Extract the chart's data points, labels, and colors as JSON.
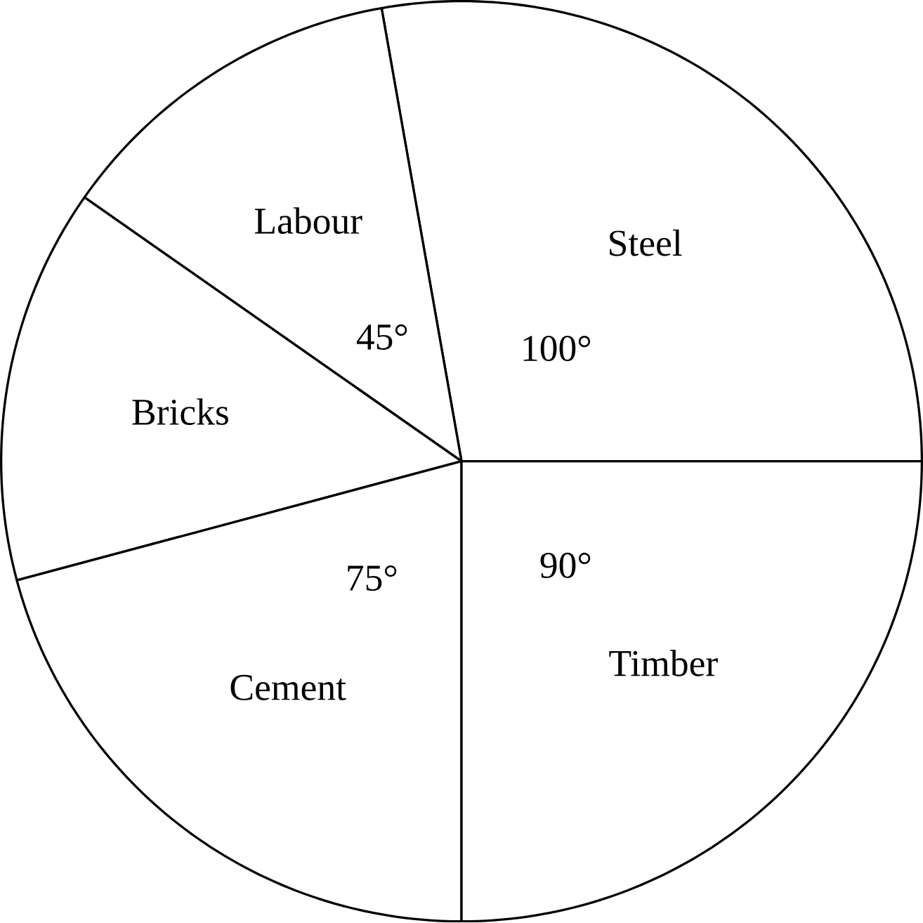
{
  "chart_data": {
    "type": "pie",
    "categories": [
      "Steel",
      "Labour",
      "Bricks",
      "Cement",
      "Timber"
    ],
    "values": [
      100,
      45,
      50,
      75,
      90
    ],
    "colors": [
      "#ffffff",
      "#ffffff",
      "#ffffff",
      "#ffffff",
      "#ffffff"
    ],
    "value_labels": [
      "100°",
      "45°",
      null,
      "75°",
      "90°"
    ]
  }
}
